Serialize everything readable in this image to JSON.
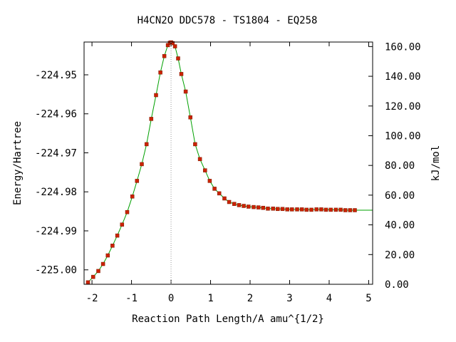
{
  "chart_data": {
    "type": "scatter",
    "title": "H4CN2O   DDC578 - TS1804 - EQ258",
    "xlabel": "Reaction Path Length/A amu^{1/2}",
    "ylabel": "Energy/Hartree",
    "y2label": "kJ/mol",
    "xlim": [
      -2.2,
      5.1
    ],
    "ylim": [
      -225.0037,
      -224.9416
    ],
    "y2lim": [
      0.0,
      163.05
    ],
    "x_ticks": [
      "-2",
      "-1",
      "0",
      "1",
      "2",
      "3",
      "4",
      "5"
    ],
    "y_ticks": [
      "-224.95",
      "-224.96",
      "-224.97",
      "-224.98",
      "-224.99",
      "-225.00"
    ],
    "y2_ticks": [
      "160.00",
      "140.00",
      "120.00",
      "100.00",
      "80.00",
      "60.00",
      "40.00",
      "20.00",
      "0.00"
    ],
    "ts_marker_x": 0.0,
    "grid": false,
    "colors": {
      "curve": "#00a000",
      "points": "#cc2200",
      "ts_line": "#999999",
      "axes": "#000000"
    },
    "series": [
      {
        "x": [
          -2.1,
          -1.97,
          -1.84,
          -1.72,
          -1.6,
          -1.48,
          -1.36,
          -1.24,
          -1.11,
          -0.98,
          -0.86,
          -0.74,
          -0.62,
          -0.5,
          -0.38,
          -0.27,
          -0.17,
          -0.08,
          -0.03,
          0.0,
          0.04,
          0.1,
          0.18,
          0.26,
          0.37,
          0.49,
          0.61,
          0.73,
          0.86,
          0.98,
          1.1,
          1.22,
          1.35,
          1.47,
          1.6,
          1.72,
          1.84,
          1.96,
          2.09,
          2.21,
          2.33,
          2.45,
          2.58,
          2.7,
          2.82,
          2.94,
          3.06,
          3.19,
          3.31,
          3.43,
          3.55,
          3.68,
          3.8,
          3.92,
          4.04,
          4.17,
          4.29,
          4.41,
          4.53,
          4.65
        ],
        "y": [
          -225.0032,
          -225.0018,
          -225.0003,
          -224.9985,
          -224.9963,
          -224.9938,
          -224.9912,
          -224.9884,
          -224.9852,
          -224.9812,
          -224.9772,
          -224.9729,
          -224.9678,
          -224.9613,
          -224.9552,
          -224.9494,
          -224.9452,
          -224.9424,
          -224.9418,
          -224.9417,
          -224.9419,
          -224.9427,
          -224.9458,
          -224.9498,
          -224.9543,
          -224.9609,
          -224.9678,
          -224.9716,
          -224.9745,
          -224.9772,
          -224.9792,
          -224.9804,
          -224.9817,
          -224.9826,
          -224.9831,
          -224.9834,
          -224.9836,
          -224.9838,
          -224.9839,
          -224.984,
          -224.9841,
          -224.9843,
          -224.9843,
          -224.9844,
          -224.9844,
          -224.9845,
          -224.9845,
          -224.9845,
          -224.9845,
          -224.9846,
          -224.9846,
          -224.9845,
          -224.9845,
          -224.9846,
          -224.9846,
          -224.9846,
          -224.9846,
          -224.9847,
          -224.9847,
          -224.9847
        ]
      }
    ]
  }
}
